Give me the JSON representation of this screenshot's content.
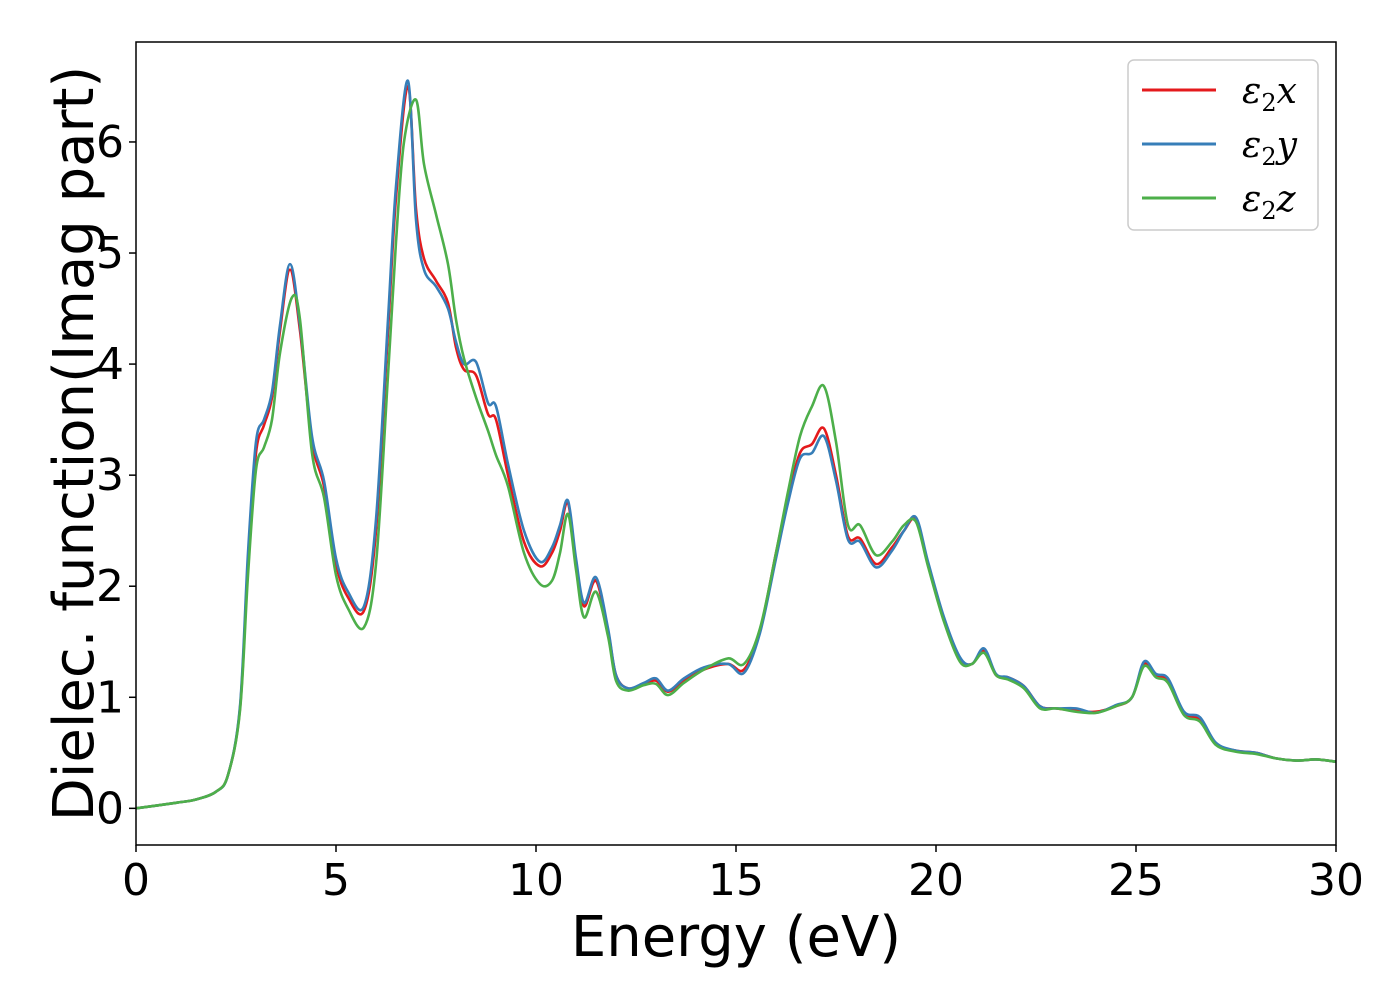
{
  "colors": {
    "eps2x": "#e41a1c",
    "eps2y": "#377eb8",
    "eps2z": "#4daf4a",
    "axis": "#000000",
    "legend_border": "#cccccc"
  },
  "chart_data": {
    "type": "line",
    "title": "",
    "xlabel": "Energy (eV)",
    "ylabel": "Dielec. function(Imag part)",
    "xlim": [
      0,
      30
    ],
    "ylim": [
      -0.33,
      6.9
    ],
    "xticks": [
      0,
      5,
      10,
      15,
      20,
      25,
      30
    ],
    "xtick_labels": [
      "0",
      "5",
      "10",
      "15",
      "20",
      "25",
      "30"
    ],
    "yticks": [
      0,
      1,
      2,
      3,
      4,
      5,
      6
    ],
    "ytick_labels": [
      "0",
      "1",
      "2",
      "3",
      "4",
      "5",
      "6"
    ],
    "grid": false,
    "legend_position": "top-right",
    "series": [
      {
        "name": "ε2x",
        "legend_main": "ε",
        "legend_sub": "2",
        "legend_suffix": "x",
        "color_key": "eps2x",
        "x": [
          0,
          1,
          1.5,
          2,
          2.3,
          2.6,
          2.8,
          3.0,
          3.2,
          3.4,
          3.6,
          3.85,
          4.1,
          4.4,
          4.7,
          5.0,
          5.3,
          5.7,
          6.0,
          6.3,
          6.5,
          6.8,
          7.0,
          7.2,
          7.5,
          7.8,
          8.0,
          8.2,
          8.5,
          8.8,
          9.0,
          9.3,
          9.7,
          10.1,
          10.4,
          10.6,
          10.8,
          11.0,
          11.2,
          11.5,
          11.8,
          12.0,
          12.3,
          12.7,
          13.0,
          13.3,
          13.7,
          14.2,
          14.8,
          15.2,
          15.6,
          16.0,
          16.3,
          16.6,
          16.9,
          17.2,
          17.5,
          17.8,
          18.1,
          18.5,
          18.9,
          19.2,
          19.5,
          19.8,
          20.2,
          20.6,
          20.9,
          21.2,
          21.5,
          21.8,
          22.2,
          22.6,
          23.0,
          23.5,
          24.0,
          24.5,
          24.9,
          25.2,
          25.5,
          25.8,
          26.2,
          26.6,
          27.0,
          27.5,
          28.0,
          28.5,
          29.0,
          29.5,
          30.0
        ],
        "y": [
          0.0,
          0.05,
          0.08,
          0.15,
          0.3,
          0.9,
          2.2,
          3.2,
          3.45,
          3.7,
          4.3,
          4.85,
          4.3,
          3.3,
          2.9,
          2.2,
          1.9,
          1.78,
          2.5,
          4.3,
          5.5,
          6.5,
          5.4,
          4.95,
          4.75,
          4.55,
          4.15,
          3.95,
          3.9,
          3.55,
          3.5,
          3.0,
          2.4,
          2.18,
          2.3,
          2.5,
          2.75,
          2.2,
          1.82,
          2.05,
          1.6,
          1.2,
          1.08,
          1.12,
          1.15,
          1.05,
          1.15,
          1.25,
          1.3,
          1.25,
          1.6,
          2.3,
          2.8,
          3.2,
          3.28,
          3.42,
          3.0,
          2.45,
          2.43,
          2.2,
          2.35,
          2.5,
          2.6,
          2.2,
          1.7,
          1.35,
          1.3,
          1.42,
          1.2,
          1.18,
          1.1,
          0.92,
          0.9,
          0.88,
          0.87,
          0.92,
          1.0,
          1.3,
          1.2,
          1.15,
          0.85,
          0.8,
          0.58,
          0.52,
          0.5,
          0.45,
          0.43,
          0.44,
          0.42
        ]
      },
      {
        "name": "ε2y",
        "legend_main": "ε",
        "legend_sub": "2",
        "legend_suffix": "y",
        "color_key": "eps2y",
        "x": [
          0,
          1,
          1.5,
          2,
          2.3,
          2.6,
          2.8,
          3.0,
          3.2,
          3.4,
          3.6,
          3.85,
          4.1,
          4.4,
          4.7,
          5.0,
          5.3,
          5.7,
          6.0,
          6.3,
          6.5,
          6.8,
          7.0,
          7.2,
          7.5,
          7.8,
          8.0,
          8.2,
          8.5,
          8.8,
          9.0,
          9.3,
          9.7,
          10.1,
          10.4,
          10.6,
          10.8,
          11.0,
          11.2,
          11.5,
          11.8,
          12.0,
          12.3,
          12.7,
          13.0,
          13.3,
          13.7,
          14.2,
          14.8,
          15.2,
          15.6,
          16.0,
          16.3,
          16.6,
          16.9,
          17.2,
          17.5,
          17.8,
          18.1,
          18.5,
          18.9,
          19.2,
          19.5,
          19.8,
          20.2,
          20.6,
          20.9,
          21.2,
          21.5,
          21.8,
          22.2,
          22.6,
          23.0,
          23.5,
          24.0,
          24.5,
          24.9,
          25.2,
          25.5,
          25.8,
          26.2,
          26.6,
          27.0,
          27.5,
          28.0,
          28.5,
          29.0,
          29.5,
          30.0
        ],
        "y": [
          0.0,
          0.05,
          0.08,
          0.15,
          0.3,
          0.92,
          2.3,
          3.3,
          3.5,
          3.75,
          4.35,
          4.9,
          4.35,
          3.35,
          2.95,
          2.25,
          1.95,
          1.82,
          2.6,
          4.4,
          5.6,
          6.55,
          5.3,
          4.85,
          4.7,
          4.5,
          4.2,
          4.0,
          4.02,
          3.65,
          3.62,
          3.1,
          2.5,
          2.22,
          2.35,
          2.55,
          2.77,
          2.25,
          1.85,
          2.08,
          1.62,
          1.2,
          1.08,
          1.13,
          1.17,
          1.06,
          1.17,
          1.27,
          1.3,
          1.22,
          1.58,
          2.25,
          2.75,
          3.15,
          3.2,
          3.35,
          2.95,
          2.42,
          2.4,
          2.17,
          2.32,
          2.5,
          2.62,
          2.22,
          1.72,
          1.36,
          1.3,
          1.44,
          1.21,
          1.18,
          1.1,
          0.92,
          0.9,
          0.9,
          0.86,
          0.93,
          1.0,
          1.32,
          1.21,
          1.17,
          0.87,
          0.82,
          0.59,
          0.52,
          0.5,
          0.45,
          0.43,
          0.44,
          0.42
        ]
      },
      {
        "name": "ε2z",
        "legend_main": "ε",
        "legend_sub": "2",
        "legend_suffix": "z",
        "color_key": "eps2z",
        "x": [
          0,
          1,
          1.5,
          2,
          2.3,
          2.6,
          2.8,
          3.0,
          3.2,
          3.4,
          3.6,
          3.9,
          4.1,
          4.4,
          4.7,
          5.0,
          5.3,
          5.7,
          6.0,
          6.3,
          6.5,
          6.7,
          7.0,
          7.2,
          7.5,
          7.8,
          8.0,
          8.2,
          8.5,
          8.8,
          9.0,
          9.3,
          9.7,
          10.1,
          10.4,
          10.6,
          10.8,
          11.0,
          11.2,
          11.5,
          11.8,
          12.0,
          12.3,
          12.7,
          13.0,
          13.3,
          13.7,
          14.2,
          14.8,
          15.2,
          15.6,
          16.0,
          16.3,
          16.6,
          16.9,
          17.2,
          17.5,
          17.8,
          18.1,
          18.5,
          18.9,
          19.2,
          19.5,
          19.8,
          20.2,
          20.6,
          20.9,
          21.2,
          21.5,
          21.8,
          22.2,
          22.6,
          23.0,
          23.5,
          24.0,
          24.5,
          24.9,
          25.2,
          25.5,
          25.8,
          26.2,
          26.6,
          27.0,
          27.5,
          28.0,
          28.5,
          29.0,
          29.5,
          30.0
        ],
        "y": [
          0.0,
          0.05,
          0.08,
          0.15,
          0.3,
          0.88,
          2.1,
          3.05,
          3.25,
          3.5,
          4.1,
          4.6,
          4.4,
          3.2,
          2.8,
          2.1,
          1.8,
          1.63,
          2.2,
          3.9,
          5.1,
          6.0,
          6.38,
          5.8,
          5.35,
          4.9,
          4.4,
          4.05,
          3.7,
          3.4,
          3.18,
          2.9,
          2.3,
          2.02,
          2.05,
          2.3,
          2.65,
          2.15,
          1.72,
          1.95,
          1.55,
          1.15,
          1.06,
          1.11,
          1.12,
          1.02,
          1.13,
          1.25,
          1.35,
          1.3,
          1.62,
          2.3,
          2.85,
          3.35,
          3.62,
          3.8,
          3.3,
          2.55,
          2.55,
          2.28,
          2.4,
          2.55,
          2.58,
          2.18,
          1.68,
          1.32,
          1.3,
          1.4,
          1.2,
          1.16,
          1.08,
          0.9,
          0.9,
          0.87,
          0.86,
          0.92,
          1.0,
          1.28,
          1.18,
          1.13,
          0.84,
          0.78,
          0.57,
          0.51,
          0.49,
          0.45,
          0.43,
          0.44,
          0.42
        ]
      }
    ]
  }
}
